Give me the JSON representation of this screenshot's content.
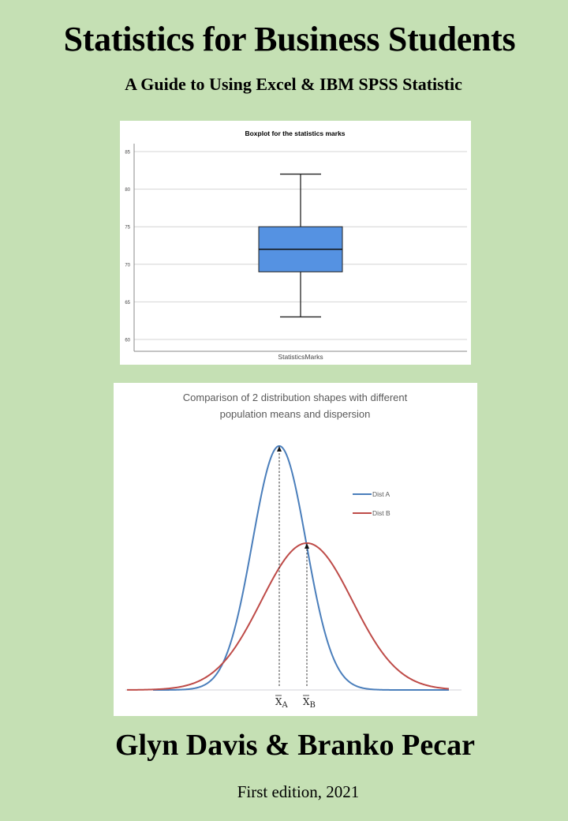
{
  "cover": {
    "title": "Statistics for Business Students",
    "subtitle": "A Guide to Using Excel & IBM SPSS Statistic",
    "authors": "Glyn Davis & Branko Pecar",
    "edition": "First edition, 2021",
    "background_color": "#c5e0b4"
  },
  "chart_data": [
    {
      "type": "boxplot",
      "title": "Boxplot for the statistics marks",
      "xlabel": "StatisticsMarks",
      "ylabel": "",
      "categories": [
        "StatisticsMarks"
      ],
      "ylim": [
        59,
        86
      ],
      "yticks": [
        60,
        65,
        70,
        75,
        80,
        85
      ],
      "grid": true,
      "legend": null,
      "box": {
        "min": 63,
        "q1": 69,
        "median": 72,
        "q3": 75,
        "max": 82
      },
      "box_color": "#5592e2"
    },
    {
      "type": "line",
      "title": "Comparison of 2 distribution shapes with different population means and dispersion",
      "xlabel": "",
      "ylabel": "",
      "grid": false,
      "legend_position": "right",
      "series": [
        {
          "name": "Dist A",
          "color": "#4a7ebb",
          "distribution": "normal",
          "relative_mean": 0,
          "relative_sd": 1.0,
          "relative_peak": 1.0
        },
        {
          "name": "Dist B",
          "color": "#be4b48",
          "distribution": "normal",
          "relative_mean": 0.55,
          "relative_sd": 1.65,
          "relative_peak": 0.6
        }
      ],
      "annotations": [
        {
          "label": "X̄A",
          "main": "X",
          "sub": "A",
          "type": "dashed-arrow-to-peak",
          "series": "Dist A"
        },
        {
          "label": "X̄B",
          "main": "X",
          "sub": "B",
          "type": "dashed-arrow-to-peak",
          "series": "Dist B"
        }
      ]
    }
  ]
}
